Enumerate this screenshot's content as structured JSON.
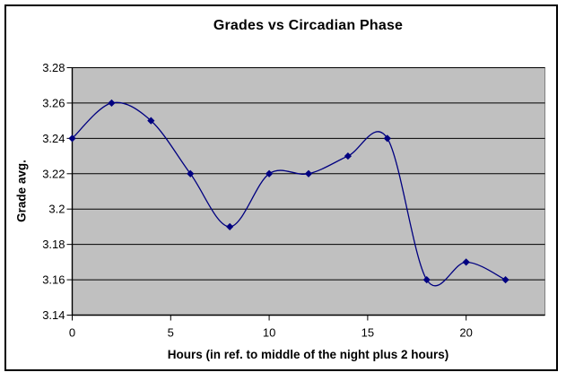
{
  "chart_data": {
    "type": "line",
    "title": "Grades vs Circadian Phase",
    "xlabel": "Hours (in ref. to middle of the night plus 2 hours)",
    "ylabel": "Grade avg.",
    "x": [
      0,
      2,
      4,
      6,
      8,
      10,
      12,
      14,
      16,
      18,
      20,
      22
    ],
    "values": [
      3.24,
      3.26,
      3.25,
      3.22,
      3.19,
      3.22,
      3.22,
      3.23,
      3.24,
      3.16,
      3.17,
      3.16
    ],
    "xlim": [
      0,
      24
    ],
    "ylim": [
      3.14,
      3.28
    ],
    "x_ticks": [
      0,
      5,
      10,
      15,
      20
    ],
    "x_tick_labels": [
      "0",
      "5",
      "10",
      "15",
      "20"
    ],
    "y_ticks": [
      3.14,
      3.16,
      3.18,
      3.2,
      3.22,
      3.24,
      3.26,
      3.28
    ],
    "y_tick_labels": [
      "3.14",
      "3.16",
      "3.18",
      "3.2",
      "3.22",
      "3.24",
      "3.26",
      "3.28"
    ],
    "smoothed": true,
    "marker": "diamond",
    "grid": "horizontal",
    "legend": "none",
    "colors": {
      "line": "#000080",
      "marker": "#000080",
      "plot_bg": "#c0c0c0",
      "gridline": "#000000",
      "plot_border": "#808080",
      "axis_line": "#000000",
      "text": "#000000",
      "chart_border": "#000000",
      "background": "#ffffff"
    }
  }
}
